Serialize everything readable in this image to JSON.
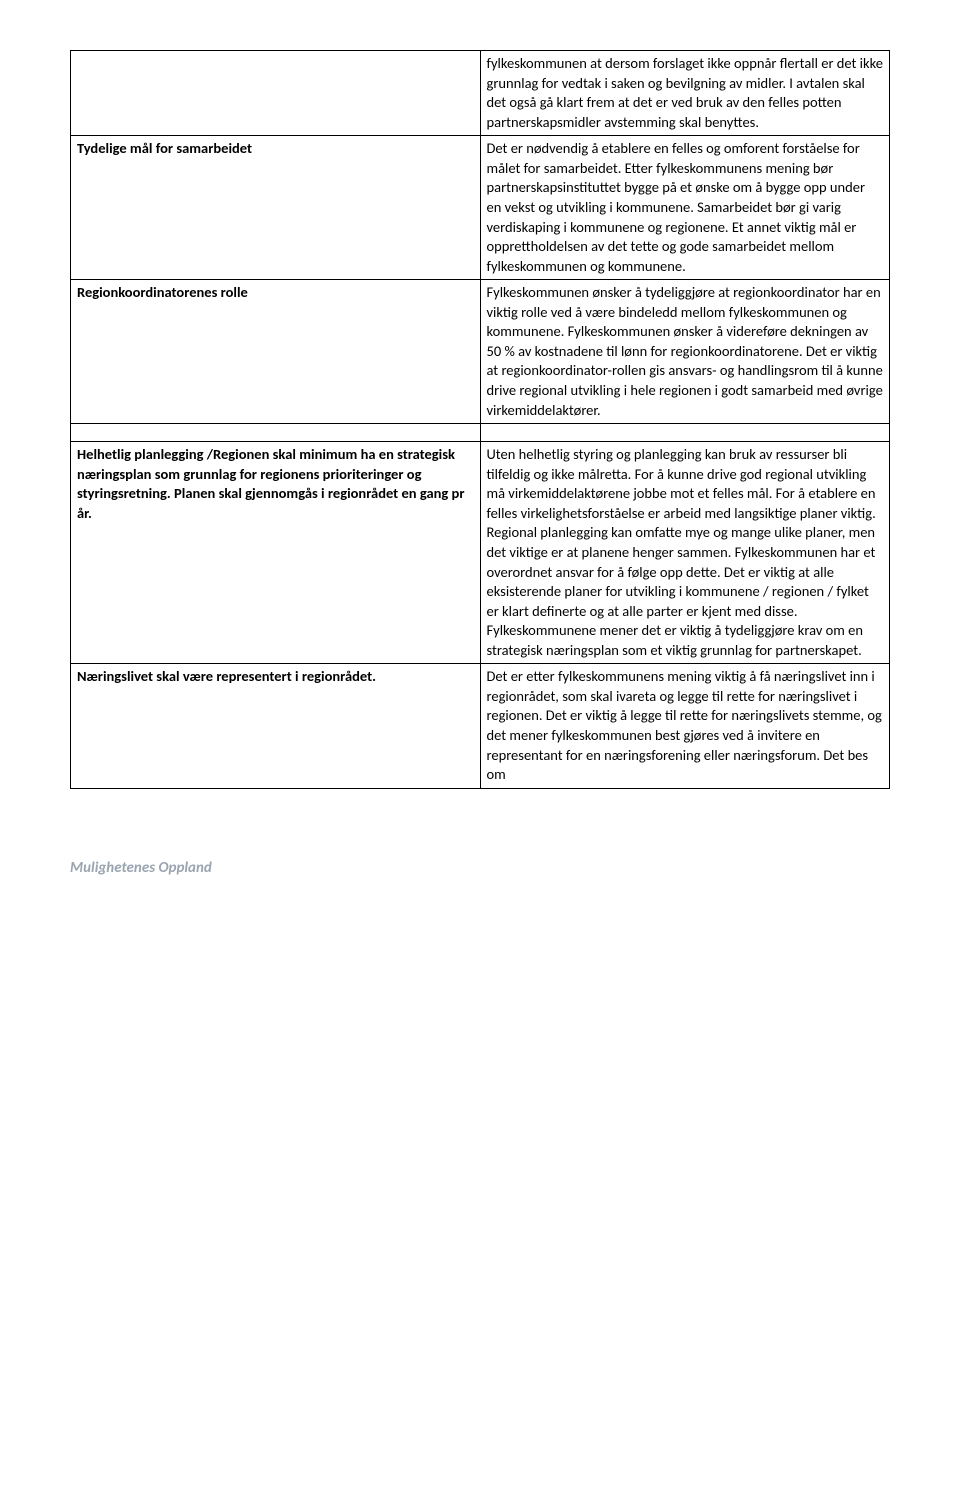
{
  "table": {
    "rows": [
      {
        "left": "",
        "left_bold": false,
        "right": "fylkeskommunen at dersom forslaget ikke oppnår flertall er det ikke grunnlag for vedtak i saken og bevilgning av midler. I avtalen skal det også gå klart frem at det er ved bruk av den felles potten partnerskapsmidler avstemming skal benyttes."
      },
      {
        "left": "Tydelige mål for samarbeidet",
        "left_bold": true,
        "right": "Det er nødvendig å etablere en felles og omforent forståelse for målet for samarbeidet. Etter fylkeskommunens mening bør partnerskapsinstituttet bygge på et ønske om å bygge opp under en vekst og utvikling i kommunene. Samarbeidet bør gi varig verdiskaping i kommunene og regionene. Et annet viktig mål er opprettholdelsen av det tette og gode samarbeidet mellom fylkeskommunen og kommunene."
      },
      {
        "left": "Regionkoordinatorenes rolle",
        "left_bold": true,
        "right": "Fylkeskommunen ønsker å tydeliggjøre at regionkoordinator har en viktig rolle ved å være bindeledd mellom fylkeskommunen og kommunene. Fylkeskommunen ønsker å videreføre dekningen av 50 % av kostnadene til lønn for regionkoordinatorene. Det er viktig at regionkoordinator-rollen gis ansvars- og handlingsrom til å kunne drive regional utvikling i hele regionen i godt samarbeid med øvrige virkemiddelaktører."
      },
      {
        "spacer": true
      },
      {
        "left": "Helhetlig planlegging /Regionen skal minimum ha en strategisk næringsplan som grunnlag for regionens prioriteringer og styringsretning. Planen skal gjennomgås i regionrådet en gang pr år.",
        "left_bold": true,
        "right": "Uten helhetlig styring og planlegging kan bruk av ressurser bli tilfeldig og ikke målretta. For å kunne drive god regional utvikling må virkemiddelaktørene jobbe mot et felles mål. For å etablere en felles virkelighetsforståelse er arbeid med langsiktige planer viktig. Regional planlegging kan omfatte mye og mange ulike planer, men det viktige er at planene henger sammen. Fylkeskommunen har et overordnet ansvar for å følge opp dette. Det er viktig at alle eksisterende planer for utvikling i kommunene / regionen / fylket er klart definerte og at alle parter er kjent med disse. Fylkeskommunene mener det er viktig å tydeliggjøre krav om en strategisk næringsplan som et viktig grunnlag for partnerskapet."
      },
      {
        "left": "Næringslivet skal være representert i regionrådet.",
        "left_bold": true,
        "right": "Det er etter fylkeskommunens mening viktig å få næringslivet inn i regionrådet, som skal ivareta og legge til rette for næringslivet i regionen. Det er viktig å legge til rette for næringslivets stemme, og det mener fylkeskommunen best gjøres ved å invitere en representant for en næringsforening eller næringsforum. Det bes om"
      }
    ]
  },
  "footer": "Mulighetenes Oppland"
}
